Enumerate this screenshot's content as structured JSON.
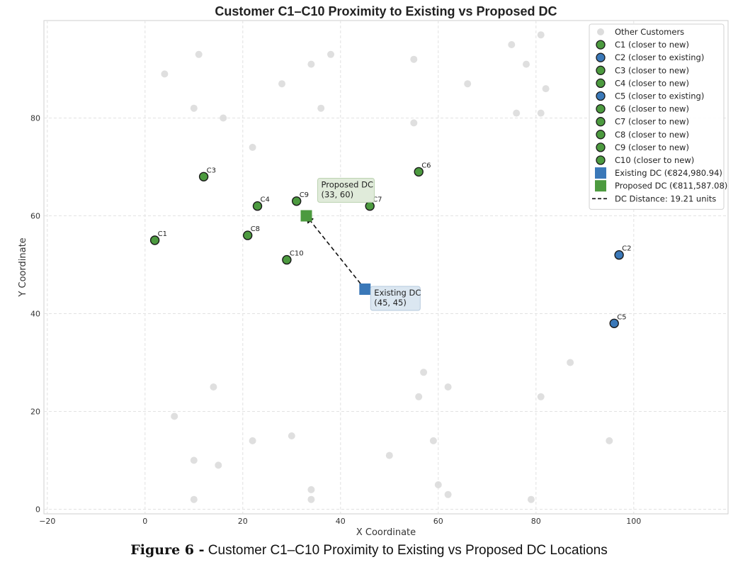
{
  "chart_data": {
    "type": "scatter",
    "title": "Customer C1–C10 Proximity to Existing vs Proposed DC",
    "xlabel": "X Coordinate",
    "ylabel": "Y Coordinate",
    "xlim": [
      -20,
      120
    ],
    "ylim": [
      -1,
      100
    ],
    "xticks": [
      -20,
      0,
      20,
      40,
      60,
      80,
      100
    ],
    "yticks": [
      0,
      20,
      40,
      60,
      80
    ],
    "grid": true,
    "legend_position": "top-right",
    "colors": {
      "closer_to_new": "#4c9a3f",
      "closer_to_existing": "#3a78b8",
      "other": "#dcdcdc",
      "existing_dc": "#3a78b8",
      "proposed_dc": "#4c9a3f"
    },
    "other_customers": {
      "name": "Other Customers",
      "points": [
        [
          4,
          89
        ],
        [
          11,
          93
        ],
        [
          10,
          82
        ],
        [
          16,
          80
        ],
        [
          22,
          74
        ],
        [
          28,
          87
        ],
        [
          34,
          91
        ],
        [
          38,
          93
        ],
        [
          36,
          82
        ],
        [
          55,
          92
        ],
        [
          55,
          79
        ],
        [
          66,
          87
        ],
        [
          75,
          95
        ],
        [
          78,
          91
        ],
        [
          76,
          81
        ],
        [
          81,
          97
        ],
        [
          82,
          86
        ],
        [
          81,
          81
        ],
        [
          87,
          30
        ],
        [
          81,
          23
        ],
        [
          95,
          14
        ],
        [
          79,
          2
        ],
        [
          62,
          3
        ],
        [
          60,
          5
        ],
        [
          59,
          14
        ],
        [
          57,
          28
        ],
        [
          56,
          23
        ],
        [
          62,
          25
        ],
        [
          50,
          11
        ],
        [
          34,
          4
        ],
        [
          34,
          2
        ],
        [
          30,
          15
        ],
        [
          22,
          14
        ],
        [
          15,
          9
        ],
        [
          10,
          10
        ],
        [
          10,
          2
        ],
        [
          6,
          19
        ],
        [
          14,
          25
        ]
      ]
    },
    "customers": [
      {
        "label": "C1",
        "x": 2,
        "y": 55,
        "group": "new",
        "legend": "C1 (closer to new)"
      },
      {
        "label": "C2",
        "x": 97,
        "y": 52,
        "group": "existing",
        "legend": "C2 (closer to existing)"
      },
      {
        "label": "C3",
        "x": 12,
        "y": 68,
        "group": "new",
        "legend": "C3 (closer to new)"
      },
      {
        "label": "C4",
        "x": 23,
        "y": 62,
        "group": "new",
        "legend": "C4 (closer to new)"
      },
      {
        "label": "C5",
        "x": 96,
        "y": 38,
        "group": "existing",
        "legend": "C5 (closer to existing)"
      },
      {
        "label": "C6",
        "x": 56,
        "y": 69,
        "group": "new",
        "legend": "C6 (closer to new)"
      },
      {
        "label": "C7",
        "x": 46,
        "y": 62,
        "group": "new",
        "legend": "C7 (closer to new)"
      },
      {
        "label": "C8",
        "x": 21,
        "y": 56,
        "group": "new",
        "legend": "C8 (closer to new)"
      },
      {
        "label": "C9",
        "x": 31,
        "y": 63,
        "group": "new",
        "legend": "C9 (closer to new)"
      },
      {
        "label": "C10",
        "x": 29,
        "y": 51,
        "group": "new",
        "legend": "C10 (closer to new)"
      }
    ],
    "existing_dc": {
      "x": 45,
      "y": 45,
      "legend": "Existing DC (€824,980.94)",
      "annotation": [
        "Existing DC",
        "(45, 45)"
      ]
    },
    "proposed_dc": {
      "x": 33,
      "y": 60,
      "legend": "Proposed DC (€811,587.08)",
      "annotation": [
        "Proposed DC",
        "(33, 60)"
      ]
    },
    "dc_distance": {
      "legend": "DC Distance: 19.21 units",
      "value": 19.21
    }
  },
  "caption": {
    "prefix": "Figure 6 -",
    "text": " Customer C1–C10 Proximity to Existing vs  Proposed DC Locations"
  }
}
